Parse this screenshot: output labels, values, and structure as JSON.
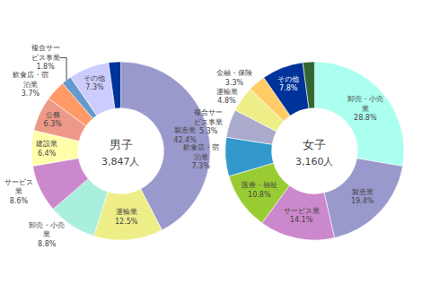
{
  "chart_data": [
    {
      "type": "donut",
      "title": "男子",
      "subtitle": "3,847人",
      "categories": [
        "製造業\n42.4%",
        "運輸業\n12.5%",
        "卸売・小売\n業\n8.8%",
        "サービス\n業\n8.6%",
        "建設業\n6.4%",
        "公務\n6.3%",
        "飲食店・宿\n泊業\n3.7%",
        "複合サー\nビス事業\n1.8%",
        "その他\n7.3%",
        null
      ],
      "values": [
        42.4,
        12.5,
        8.8,
        8.6,
        6.4,
        6.3,
        3.7,
        1.8,
        7.3,
        2.2
      ],
      "colors": [
        "#9999cc",
        "#eeee88",
        "#aaeedd",
        "#cc88cc",
        "#ffffaa",
        "#ee9988",
        "#ff9966",
        "#6699cc",
        "#ccccff",
        "#003399"
      ]
    },
    {
      "type": "donut",
      "title": "女子",
      "subtitle": "3,160人",
      "categories": [
        "卸売・小売\n業\n28.8%",
        "製造業\n19.4%",
        "サービス業\n14.1%",
        "医療・福祉\n10.8%",
        "飲食店・宿\n泊業\n7.3%",
        "複合サー\nビス事業\n5.3%",
        "運輸業\n4.8%",
        "金融・保険\n3.3%",
        "その他\n7.8%",
        null
      ],
      "values": [
        28.8,
        19.4,
        14.1,
        10.8,
        7.3,
        5.3,
        4.8,
        3.3,
        7.8,
        2.2
      ],
      "colors": [
        "#aaffee",
        "#9999cc",
        "#cc88cc",
        "#99cc33",
        "#3399cc",
        "#aaaacc",
        "#eeee88",
        "#ffcc66",
        "#003399",
        "#336633"
      ]
    }
  ]
}
